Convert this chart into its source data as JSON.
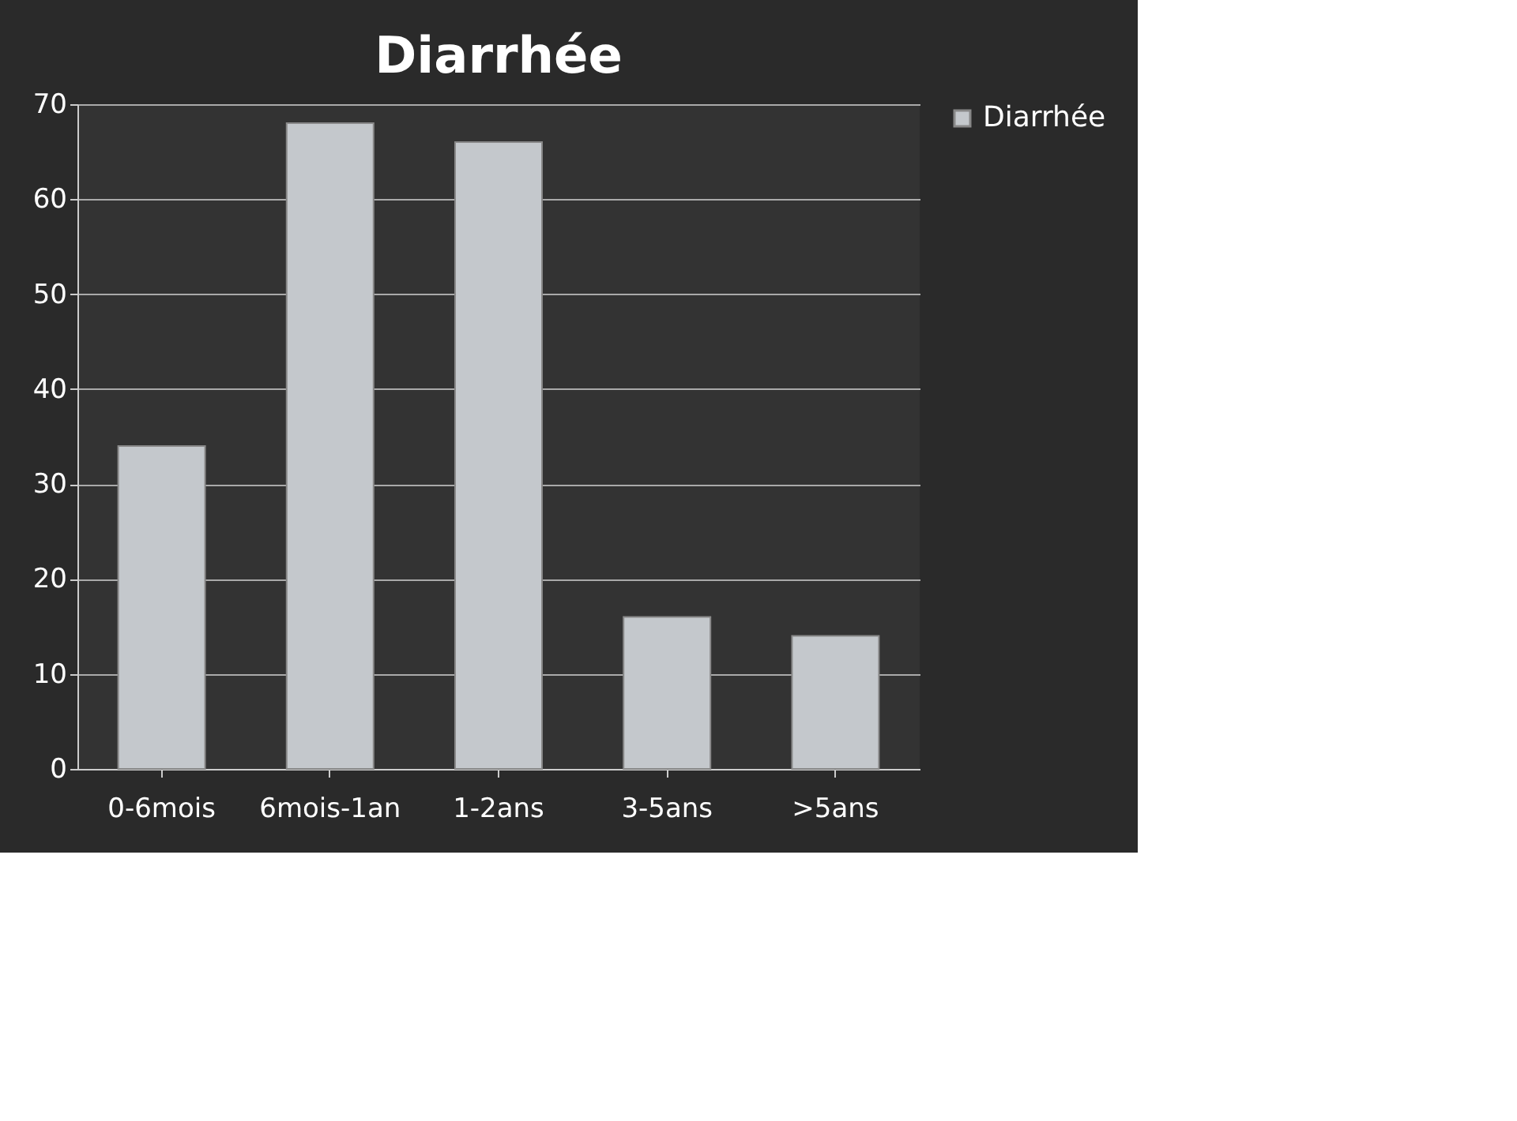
{
  "chart_data": {
    "type": "bar",
    "title": "Diarrhée",
    "categories": [
      "0-6mois",
      "6mois-1an",
      "1-2ans",
      "3-5ans",
      ">5ans"
    ],
    "series": [
      {
        "name": "Diarrhée",
        "color": "#c4c8cc",
        "values": [
          34,
          68,
          66,
          16,
          14
        ]
      }
    ],
    "ylim": [
      0,
      70
    ],
    "yticks": [
      0,
      10,
      20,
      30,
      40,
      50,
      60,
      70
    ],
    "grid": "y",
    "legend": "right"
  }
}
